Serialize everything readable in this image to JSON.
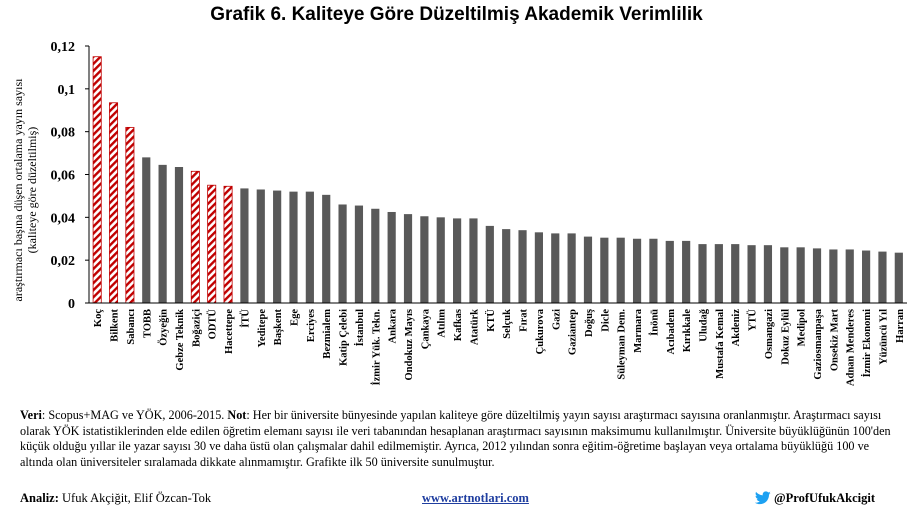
{
  "title": "Grafik 6. Kaliteye Göre Düzeltilmiş Akademik Verimlilik",
  "chart_data": {
    "type": "bar",
    "ylabel_line1": "araştırmacı başına düşen ortalama yayın sayısı",
    "ylabel_line2": "(kaliteye göre düzeltilmiş)",
    "ylim": [
      0,
      0.12
    ],
    "yticks": [
      0,
      0.02,
      0.04,
      0.06,
      0.08,
      0.1,
      0.12
    ],
    "ytick_labels": [
      "0",
      "0,02",
      "0,04",
      "0,06",
      "0,08",
      "0,1",
      "0,12"
    ],
    "grid": false,
    "categories": [
      "Koç",
      "Bilkent",
      "Sabancı",
      "TOBB",
      "Özyeğin",
      "Gebze Teknik",
      "Boğaziçi",
      "ODTÜ",
      "Hacettepe",
      "İTÜ",
      "Yeditepe",
      "Başkent",
      "Ege",
      "Erciyes",
      "Bezmialem",
      "Katip Çelebi",
      "İstanbul",
      "İzmir Yük. Tekn.",
      "Ankara",
      "Ondokuz Mayıs",
      "Çankaya",
      "Atılım",
      "Kafkas",
      "Atatürk",
      "KTÜ",
      "Selçuk",
      "Fırat",
      "Çukurova",
      "Gazi",
      "Gaziantep",
      "Doğuş",
      "Dicle",
      "Süleyman Dem.",
      "Marmara",
      "İnönü",
      "Acıbadem",
      "Kırıkkale",
      "Uludağ",
      "Mustafa Kemal",
      "Akdeniz",
      "YTÜ",
      "Osmangazi",
      "Dokuz Eylül",
      "Medipol",
      "Gaziosmanpaşa",
      "Onsekiz Mart",
      "Adnan Menderes",
      "İzmir Ekonomi",
      "Yüzüncü Yıl",
      "Harran"
    ],
    "values": [
      0.115,
      0.0935,
      0.082,
      0.068,
      0.0645,
      0.0635,
      0.0615,
      0.055,
      0.0545,
      0.0535,
      0.053,
      0.0525,
      0.052,
      0.052,
      0.0505,
      0.046,
      0.0455,
      0.044,
      0.0425,
      0.0415,
      0.0405,
      0.04,
      0.0395,
      0.0395,
      0.036,
      0.0345,
      0.034,
      0.033,
      0.0325,
      0.0325,
      0.031,
      0.0305,
      0.0305,
      0.03,
      0.03,
      0.029,
      0.029,
      0.0275,
      0.0275,
      0.0275,
      0.027,
      0.027,
      0.026,
      0.026,
      0.0255,
      0.025,
      0.025,
      0.0245,
      0.024,
      0.0235
    ],
    "highlighted": [
      "Koç",
      "Bilkent",
      "Sabancı",
      "Boğaziçi",
      "ODTÜ",
      "Hacettepe"
    ],
    "colors": {
      "bar": "#595959",
      "highlight_stripe": "#c00000",
      "highlight_bg": "#ffffff"
    }
  },
  "notes": {
    "veri_label": "Veri",
    "veri_text": ": Scopus+MAG ve YÖK, 2006-2015. ",
    "not_label": "Not",
    "not_text": ": Her bir üniversite bünyesinde yapılan kaliteye göre düzeltilmiş yayın sayısı araştırmacı sayısına oranlanmıştır. Araştırmacı sayısı olarak YÖK istatistiklerinden elde edilen öğretim elemanı sayısı ile veri tabanından hesaplanan araştırmacı sayısının maksimumu kullanılmıştır. Üniversite büyüklüğünün 100'den küçük olduğu yıllar ile yazar sayısı 30 ve daha üstü olan çalışmalar dahil edilmemiştir. Ayrıca, 2012 yılından sonra eğitim-öğretime başlayan veya ortalama büyüklüğü 100 ve altında olan üniversiteler sıralamada dikkate alınmamıştır. Grafikte ilk 50 üniversite sunulmuştur."
  },
  "footer": {
    "analiz_label": "Analiz:",
    "analiz_text": " Ufuk Akçiğit, Elif Özcan-Tok",
    "website": "www.artnotlari.com",
    "twitter": "@ProfUfukAkcigit"
  }
}
